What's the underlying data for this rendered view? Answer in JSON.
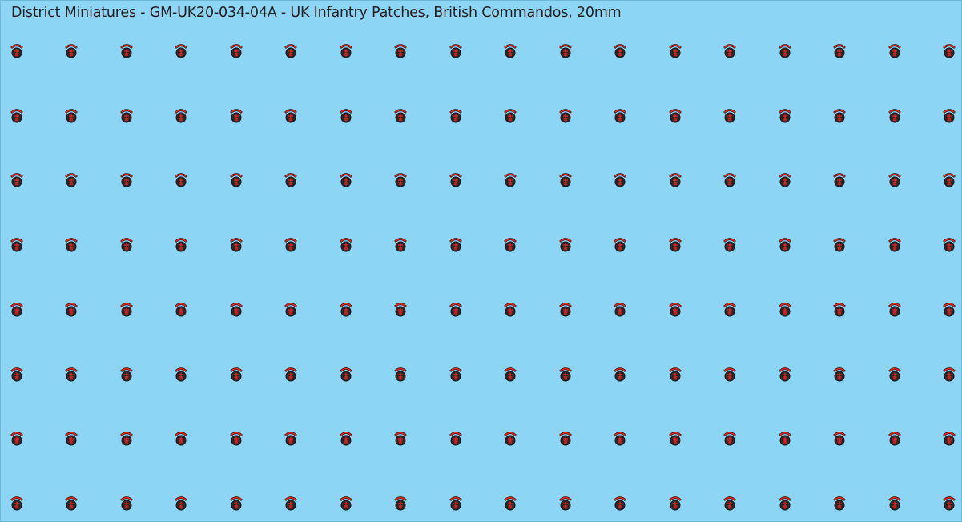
{
  "title": "District Miniatures - GM-UK20-034-04A - UK Infantry Patches, British Commandos, 20mm",
  "sheet": {
    "background_color": "#8dd5f5",
    "rows": 8,
    "columns": 18,
    "patch": {
      "icon": "commando-dagger-patch-icon",
      "arc_color": "#e0261f",
      "circle_color": "#2a2426",
      "dagger_color": "#e0261f"
    }
  }
}
